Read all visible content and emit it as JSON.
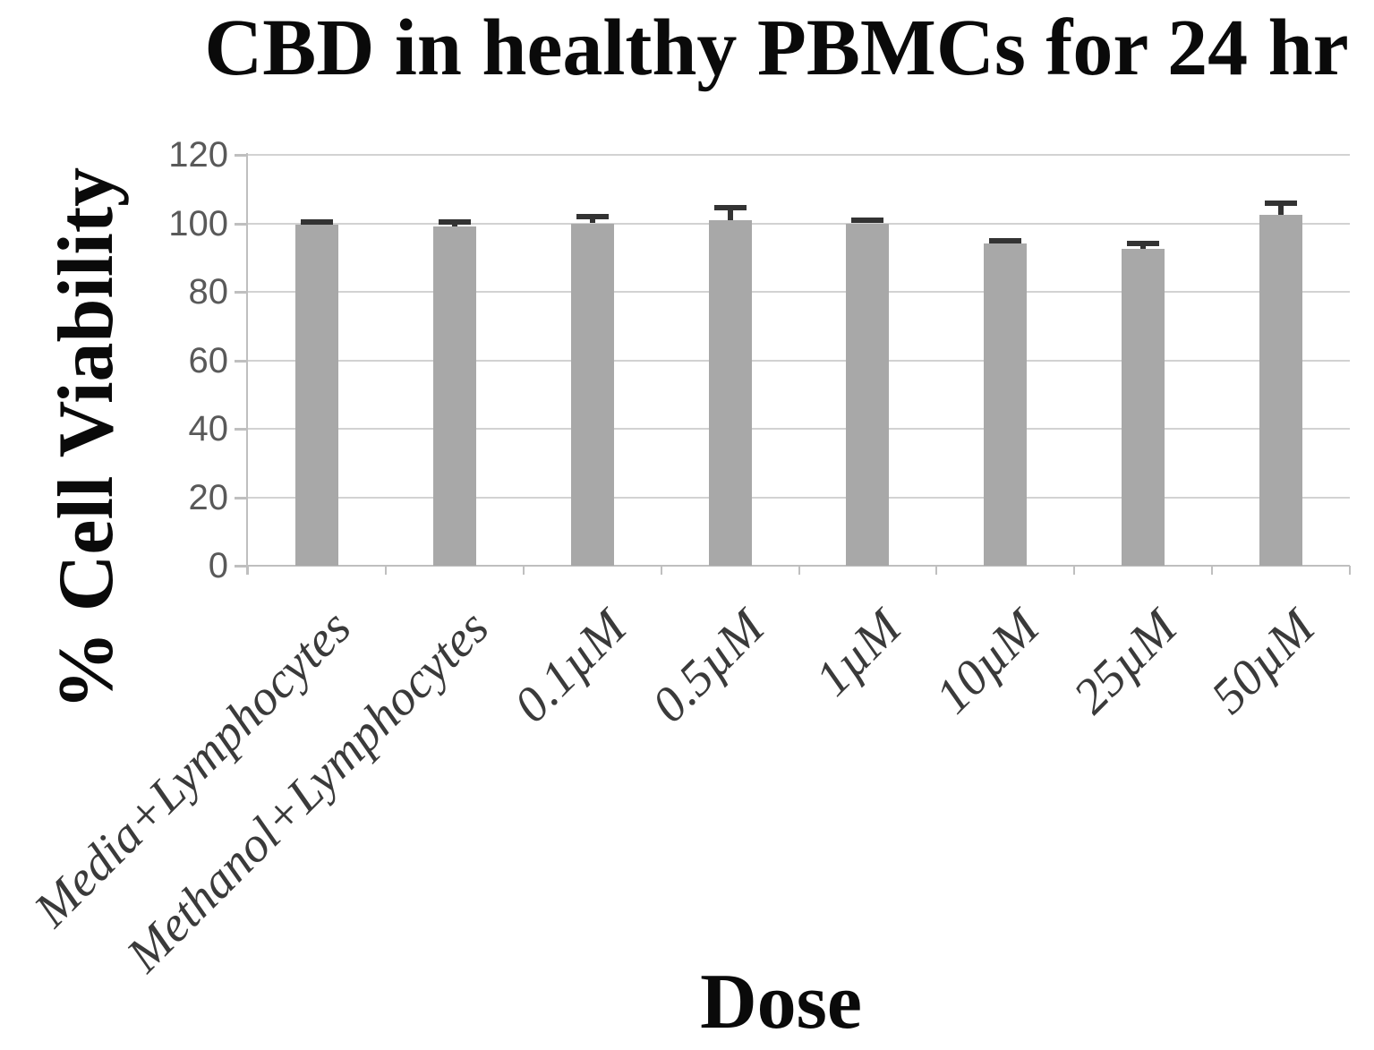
{
  "figure": {
    "title": "CBD in healthy PBMCs for 24 hr",
    "y_axis_title": "% Cell Viability",
    "x_axis_title": "Dose"
  },
  "chart_data": {
    "type": "bar",
    "title": "CBD in healthy PBMCs for 24 hr",
    "xlabel": "Dose",
    "ylabel": "% Cell Viability",
    "categories": [
      "Media+Lymphocytes",
      "Methanol+Lymphocytes",
      "0.1µM",
      "0.5µM",
      "1µM",
      "10µM",
      "25µM",
      "50µM"
    ],
    "values": [
      99.5,
      99,
      100,
      101,
      100,
      94,
      92.5,
      102.5
    ],
    "error_upper": [
      1,
      1.5,
      2,
      3.5,
      1,
      1,
      1.5,
      3.5
    ],
    "yticks": [
      0,
      20,
      40,
      60,
      80,
      100,
      120
    ],
    "ylim": [
      0,
      120
    ],
    "grid": "horizontal",
    "legend": "none",
    "colors": {
      "bar": "#a8a8a8",
      "error_bar": "#333333",
      "gridline": "#d2d2d2",
      "axis": "#bfbfbf",
      "tick_label": "#595959",
      "category_label": "#3a3a3a",
      "text": "#0a0a0a",
      "background": "#ffffff"
    }
  }
}
